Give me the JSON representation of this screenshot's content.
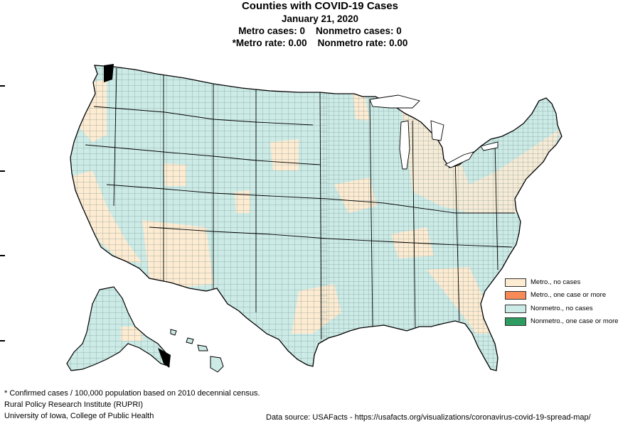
{
  "title": {
    "line1": "Counties with COVID-19 Cases",
    "line2": "January 21, 2020",
    "line3": "Metro cases: 0    Nonmetro cases: 0",
    "line4": "*Metro rate: 0.00    Nonmetro rate: 0.00"
  },
  "colors": {
    "metro_no_cases": "#fdebd2",
    "metro_cases": "#f88a57",
    "nonmetro_no_cases": "#cdebe6",
    "nonmetro_cases": "#2e9b60",
    "border": "#3a5a58"
  },
  "legend": {
    "items": [
      {
        "label": "Metro., no cases",
        "color": "#fdebd2"
      },
      {
        "label": "Metro., one case or more",
        "color": "#f88a57"
      },
      {
        "label": "Nonmetro., no cases",
        "color": "#cdebe6"
      },
      {
        "label": "Nonmetro., one case or more",
        "color": "#2e9b60"
      }
    ]
  },
  "footer": {
    "note": "* Confirmed cases / 100,000 population based on 2010 decennial census.",
    "org": "Rural Policy Research Institute (RUPRI)",
    "university": "University of Iowa, College of Public Health",
    "source": "Data source: USAFacts - https://usafacts.org/visualizations/coronavirus-covid-19-spread-map/"
  }
}
